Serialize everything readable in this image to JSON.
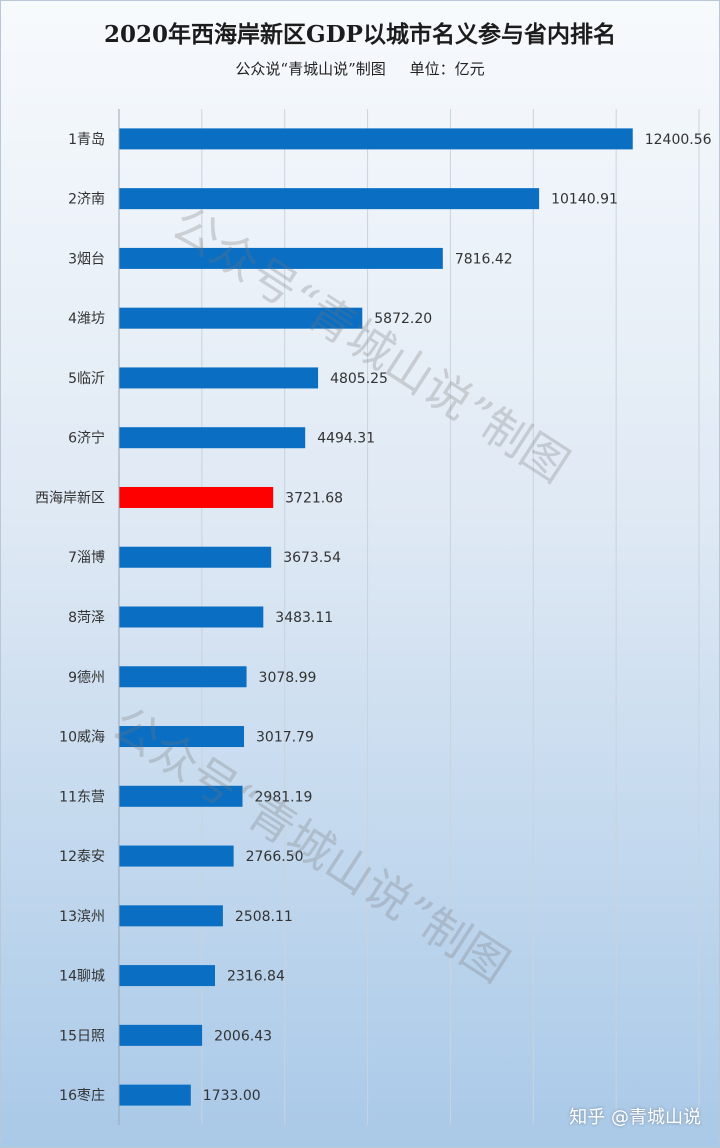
{
  "chart_data": {
    "type": "bar",
    "orientation": "horizontal",
    "title": "2020年西海岸新区GDP以城市名义参与省内排名",
    "subtitle": "公众说“青城山说”制图     单位：亿元",
    "categories": [
      "1青岛",
      "2济南",
      "3烟台",
      "4潍坊",
      "5临沂",
      "6济宁",
      "西海岸新区",
      "7淄博",
      "8菏泽",
      "9德州",
      "10威海",
      "11东营",
      "12泰安",
      "13滨州",
      "14聊城",
      "15日照",
      "16枣庄"
    ],
    "values": [
      12400.56,
      10140.91,
      7816.42,
      5872.2,
      4805.25,
      4494.31,
      3721.68,
      3673.54,
      3483.11,
      3078.99,
      3017.79,
      2981.19,
      2766.5,
      2508.11,
      2316.84,
      2006.43,
      1733.0
    ],
    "value_labels": [
      "12400.56",
      "10140.91",
      "7816.42",
      "5872.20",
      "4805.25",
      "4494.31",
      "3721.68",
      "3673.54",
      "3483.11",
      "3078.99",
      "3017.79",
      "2981.19",
      "2766.50",
      "2508.11",
      "2316.84",
      "2006.43",
      "1733.00"
    ],
    "highlight_index": 6,
    "xlim": [
      0,
      14000
    ],
    "grid": true,
    "colors": {
      "bar": "#0a6ec2",
      "highlight": "#ff0000"
    }
  },
  "watermark": "公众号“青城山说”制图",
  "brand": "知乎 @青城山说"
}
